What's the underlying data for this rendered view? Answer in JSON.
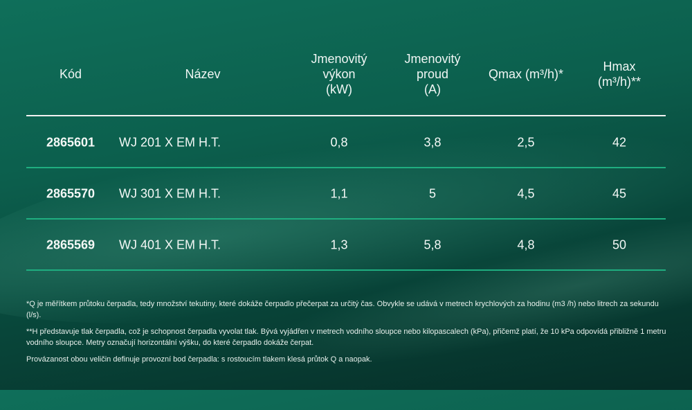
{
  "headers": [
    "Kód",
    "Název",
    "Jmenovitý\nvýkon\n(kW)",
    "Jmenovitý\nproud\n(A)",
    "Qmax (m³/h)*",
    "Hmax\n(m³/h)**"
  ],
  "rows": [
    {
      "code": "2865601",
      "name": "WJ 201 X EM H.T.",
      "kw": "0,8",
      "a": "3,8",
      "qmax": "2,5",
      "hmax": "42"
    },
    {
      "code": "2865570",
      "name": "WJ 301 X EM H.T.",
      "kw": "1,1",
      "a": "5",
      "qmax": "4,5",
      "hmax": "45"
    },
    {
      "code": "2865569",
      "name": "WJ 401 X EM H.T.",
      "kw": "1,3",
      "a": "5,8",
      "qmax": "4,8",
      "hmax": "50"
    }
  ],
  "notes": [
    "*Q je měřítkem průtoku čerpadla, tedy množství tekutiny, které dokáže čerpadlo přečerpat za určitý čas. Obvykle se udává v metrech krychlových za hodinu (m3 /h) nebo litrech za sekundu (l/s).",
    "**H představuje tlak čerpadla, což je schopnost čerpadla vyvolat tlak. Bývá vyjádřen v metrech vodního sloupce nebo kilopascalech (kPa), přičemž platí, že 10 kPa odpovídá přibližně 1 metru vodního sloupce. Metry označují horizontální výšku, do které čerpadlo dokáže čerpat.",
    "Provázanost obou veličin definuje provozní bod čerpadla: s rostoucím tlakem klesá průtok Q a naopak."
  ],
  "colors": {
    "divider": "#1fae80",
    "header_line": "#f2f2f2",
    "background": "#0c5f4d"
  }
}
